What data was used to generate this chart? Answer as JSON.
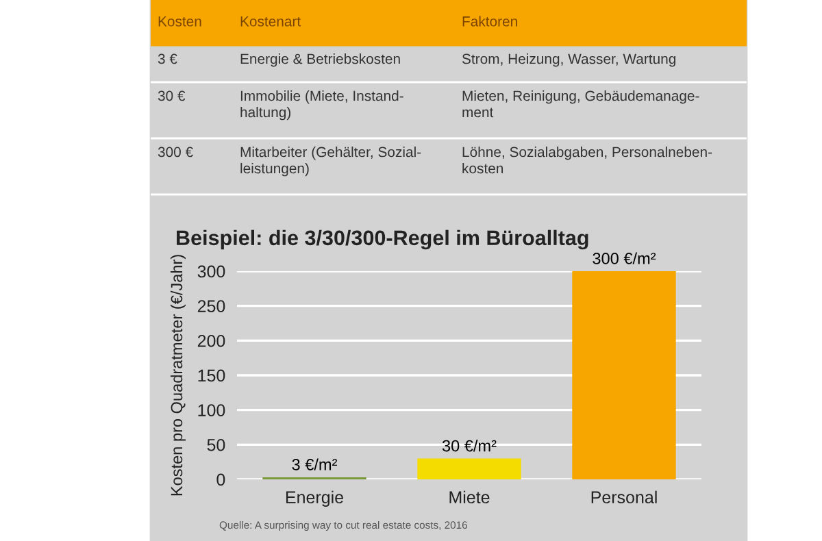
{
  "chart_data": [
    {
      "type": "other",
      "annotations": [
        "Kosten",
        "Kostenart",
        "Faktoren",
        "3 €",
        "Energie & Betriebskosten",
        "Strom, Heizung, Wasser, Wartung",
        "30 €",
        "Immobilie (Miete, Instand-\nhaltung)",
        "Mieten, Reinigung, Gebäudemanage-\nment",
        "300 €",
        "Mitarbeiter (Gehälter, Sozial-\nleistungen)",
        "Löhne, Sozialabgaben, Personalneben-\nkosten"
      ]
    },
    {
      "type": "bar",
      "title": "Beispiel: die 3/30/300-Regel im Büroalltag",
      "ylabel": "Kosten pro Quadratmeter (€/Jahr)",
      "categories": [
        "Energie",
        "Miete",
        "Personal"
      ],
      "values": [
        3,
        30,
        300
      ],
      "colors": [
        "#7a9a3a",
        "#f5dc00",
        "#f7a600"
      ],
      "value_labels": [
        "3 €/m²",
        "30 €/m²",
        "300 €/m²"
      ],
      "ylim": [
        0,
        300
      ],
      "yticks": [
        0,
        50,
        100,
        150,
        200,
        250,
        300
      ],
      "grid": "y",
      "legend": false,
      "annotations": [
        "Quelle: A surprising way to cut real estate costs, 2016"
      ]
    }
  ]
}
